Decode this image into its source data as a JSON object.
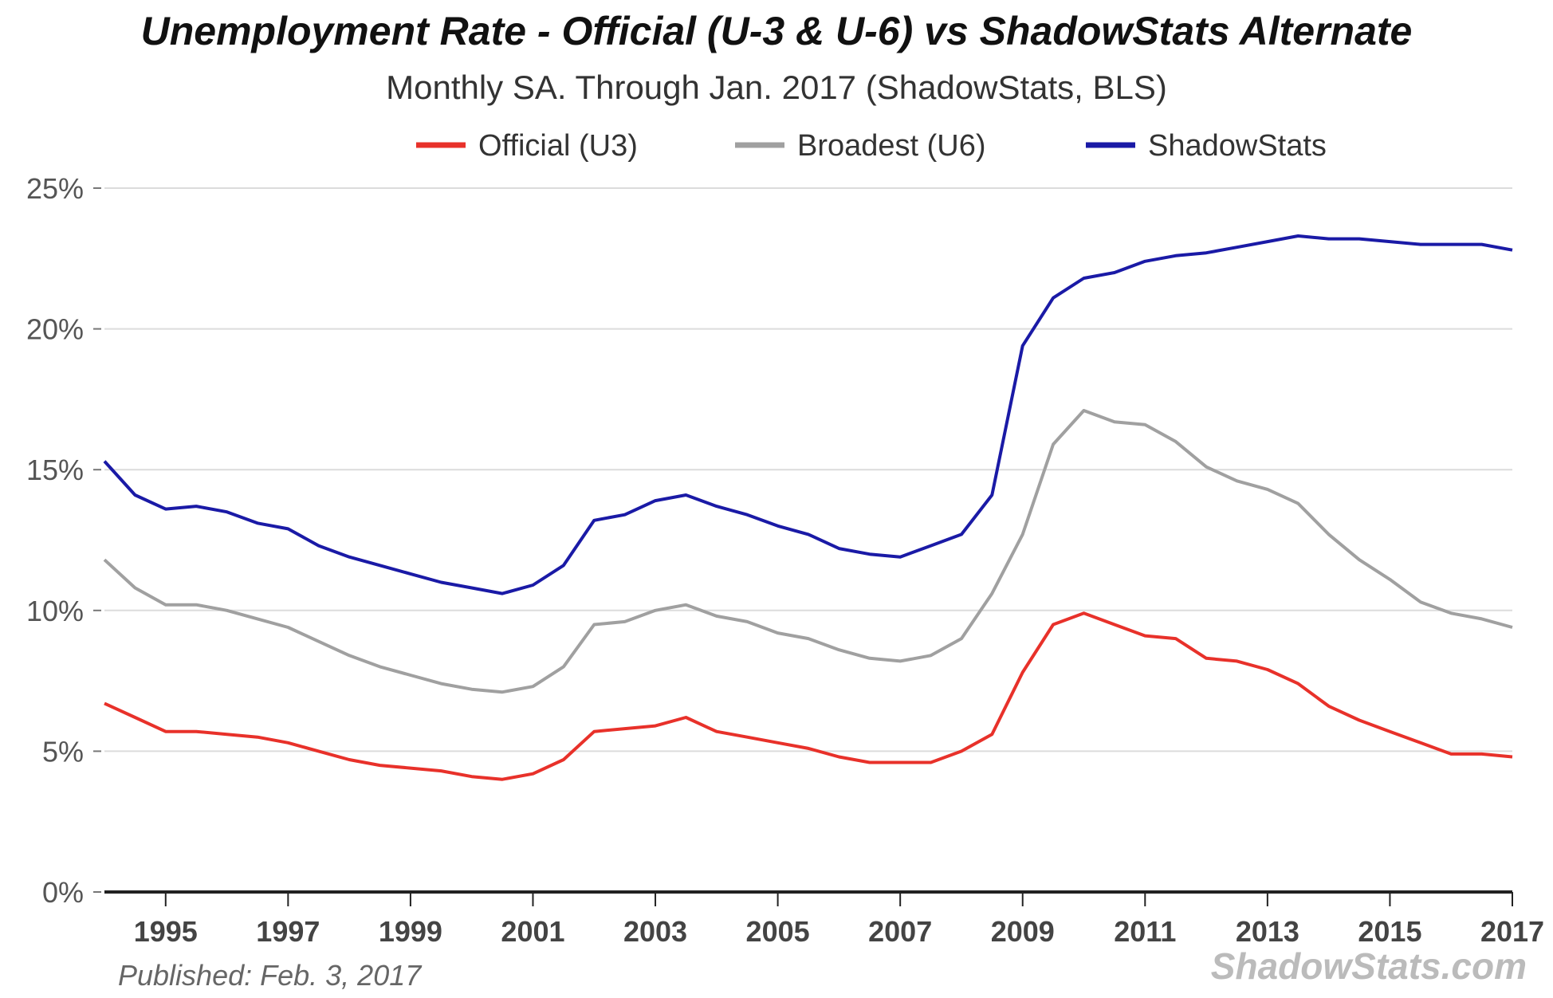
{
  "chart_data": {
    "type": "line",
    "title": "Unemployment Rate - Official (U-3 & U-6) vs ShadowStats Alternate",
    "subtitle": "Monthly SA. Through Jan. 2017  (ShadowStats, BLS)",
    "xlabel": "",
    "ylabel": "",
    "xlim": [
      1994,
      2017
    ],
    "ylim": [
      0,
      25
    ],
    "yticks": [
      0,
      5,
      10,
      15,
      20,
      25
    ],
    "ytick_labels": [
      "0%",
      "5%",
      "10%",
      "15%",
      "20%",
      "25%"
    ],
    "xticks": [
      1995,
      1997,
      1999,
      2001,
      2003,
      2005,
      2007,
      2009,
      2011,
      2013,
      2015,
      2017
    ],
    "xtick_labels": [
      "1995",
      "1997",
      "1999",
      "2001",
      "2003",
      "2005",
      "2007",
      "2009",
      "2011",
      "2013",
      "2015",
      "2017"
    ],
    "grid": true,
    "legend_position": "top-center",
    "x": [
      1994,
      1994.5,
      1995,
      1995.5,
      1996,
      1996.5,
      1997,
      1997.5,
      1998,
      1998.5,
      1999,
      1999.5,
      2000,
      2000.5,
      2001,
      2001.5,
      2002,
      2002.5,
      2003,
      2003.5,
      2004,
      2004.5,
      2005,
      2005.5,
      2006,
      2006.5,
      2007,
      2007.5,
      2008,
      2008.5,
      2009,
      2009.5,
      2010,
      2010.5,
      2011,
      2011.5,
      2012,
      2012.5,
      2013,
      2013.5,
      2014,
      2014.5,
      2015,
      2015.5,
      2016,
      2016.5,
      2017
    ],
    "series": [
      {
        "name": "Official (U3)",
        "color": "#e8312a",
        "values": [
          6.7,
          6.2,
          5.7,
          5.7,
          5.6,
          5.5,
          5.3,
          5.0,
          4.7,
          4.5,
          4.4,
          4.3,
          4.1,
          4.0,
          4.2,
          4.7,
          5.7,
          5.8,
          5.9,
          6.2,
          5.7,
          5.5,
          5.3,
          5.1,
          4.8,
          4.6,
          4.6,
          4.6,
          5.0,
          5.6,
          7.8,
          9.5,
          9.9,
          9.5,
          9.1,
          9.0,
          8.3,
          8.2,
          7.9,
          7.4,
          6.6,
          6.1,
          5.7,
          5.3,
          4.9,
          4.9,
          4.8
        ]
      },
      {
        "name": "Broadest (U6)",
        "color": "#a0a0a0",
        "values": [
          11.8,
          10.8,
          10.2,
          10.2,
          10.0,
          9.7,
          9.4,
          8.9,
          8.4,
          8.0,
          7.7,
          7.4,
          7.2,
          7.1,
          7.3,
          8.0,
          9.5,
          9.6,
          10.0,
          10.2,
          9.8,
          9.6,
          9.2,
          9.0,
          8.6,
          8.3,
          8.2,
          8.4,
          9.0,
          10.6,
          12.7,
          15.9,
          17.1,
          16.7,
          16.6,
          16.0,
          15.1,
          14.6,
          14.3,
          13.8,
          12.7,
          11.8,
          11.1,
          10.3,
          9.9,
          9.7,
          9.4
        ]
      },
      {
        "name": "ShadowStats",
        "color": "#1a1aa6",
        "values": [
          15.3,
          14.1,
          13.6,
          13.7,
          13.5,
          13.1,
          12.9,
          12.3,
          11.9,
          11.6,
          11.3,
          11.0,
          10.8,
          10.6,
          10.9,
          11.6,
          13.2,
          13.4,
          13.9,
          14.1,
          13.7,
          13.4,
          13.0,
          12.7,
          12.2,
          12.0,
          11.9,
          12.3,
          12.7,
          14.1,
          19.4,
          21.1,
          21.8,
          22.0,
          22.4,
          22.6,
          22.7,
          22.9,
          23.1,
          23.3,
          23.2,
          23.2,
          23.1,
          23.0,
          23.0,
          23.0,
          22.8
        ]
      }
    ],
    "annotations": {
      "published": "Published: Feb. 3, 2017",
      "watermark": "ShadowStats.com"
    }
  }
}
